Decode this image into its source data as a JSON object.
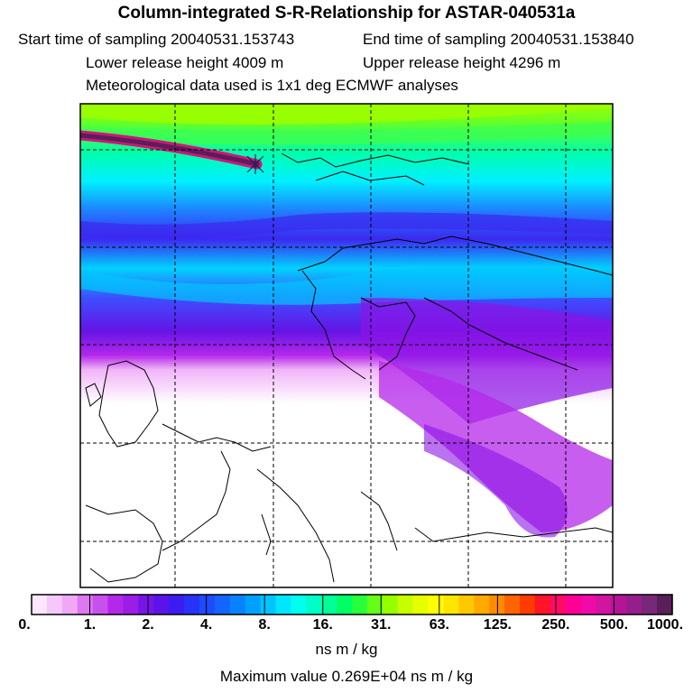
{
  "header": {
    "title": "Column-integrated S-R-Relationship for ASTAR-040531a",
    "start_time": "Start time of sampling 20040531.153743",
    "end_time": "End time of sampling 20040531.153840",
    "lower_height": "Lower release height 4009 m",
    "upper_height": "Upper release height 4296 m",
    "met_data": "Meteorological data used is 1x1 deg ECMWF analyses"
  },
  "colorbar": {
    "ticks": [
      "0.",
      "1.",
      "2.",
      "4.",
      "8.",
      "16.",
      "31.",
      "63.",
      "125.",
      "250.",
      "500.",
      "1000."
    ],
    "colors": [
      "#ffe6ff",
      "#f5c8fa",
      "#f0a8f5",
      "#dc78f0",
      "#c850ec",
      "#b428ea",
      "#9b1ee6",
      "#7814e6",
      "#5a14ea",
      "#3c1cf0",
      "#2832f8",
      "#1e4bff",
      "#1464ff",
      "#0a82ff",
      "#00a0ff",
      "#00c4ff",
      "#00e6ff",
      "#00ffee",
      "#00ffc8",
      "#00ff96",
      "#00ff64",
      "#28ff3c",
      "#64ff14",
      "#96ff00",
      "#c8ff00",
      "#e6ff00",
      "#ffff00",
      "#ffe600",
      "#ffc800",
      "#ffaa00",
      "#ff8c00",
      "#ff6400",
      "#ff3c00",
      "#ff1428",
      "#ff0a64",
      "#ff0096",
      "#f00aaa",
      "#d214a0",
      "#b41496",
      "#961e8c",
      "#782878",
      "#5a1e5a"
    ],
    "units": "ns m / kg"
  },
  "footer": {
    "max_value": "Maximum value  0.269E+04 ns m / kg"
  }
}
